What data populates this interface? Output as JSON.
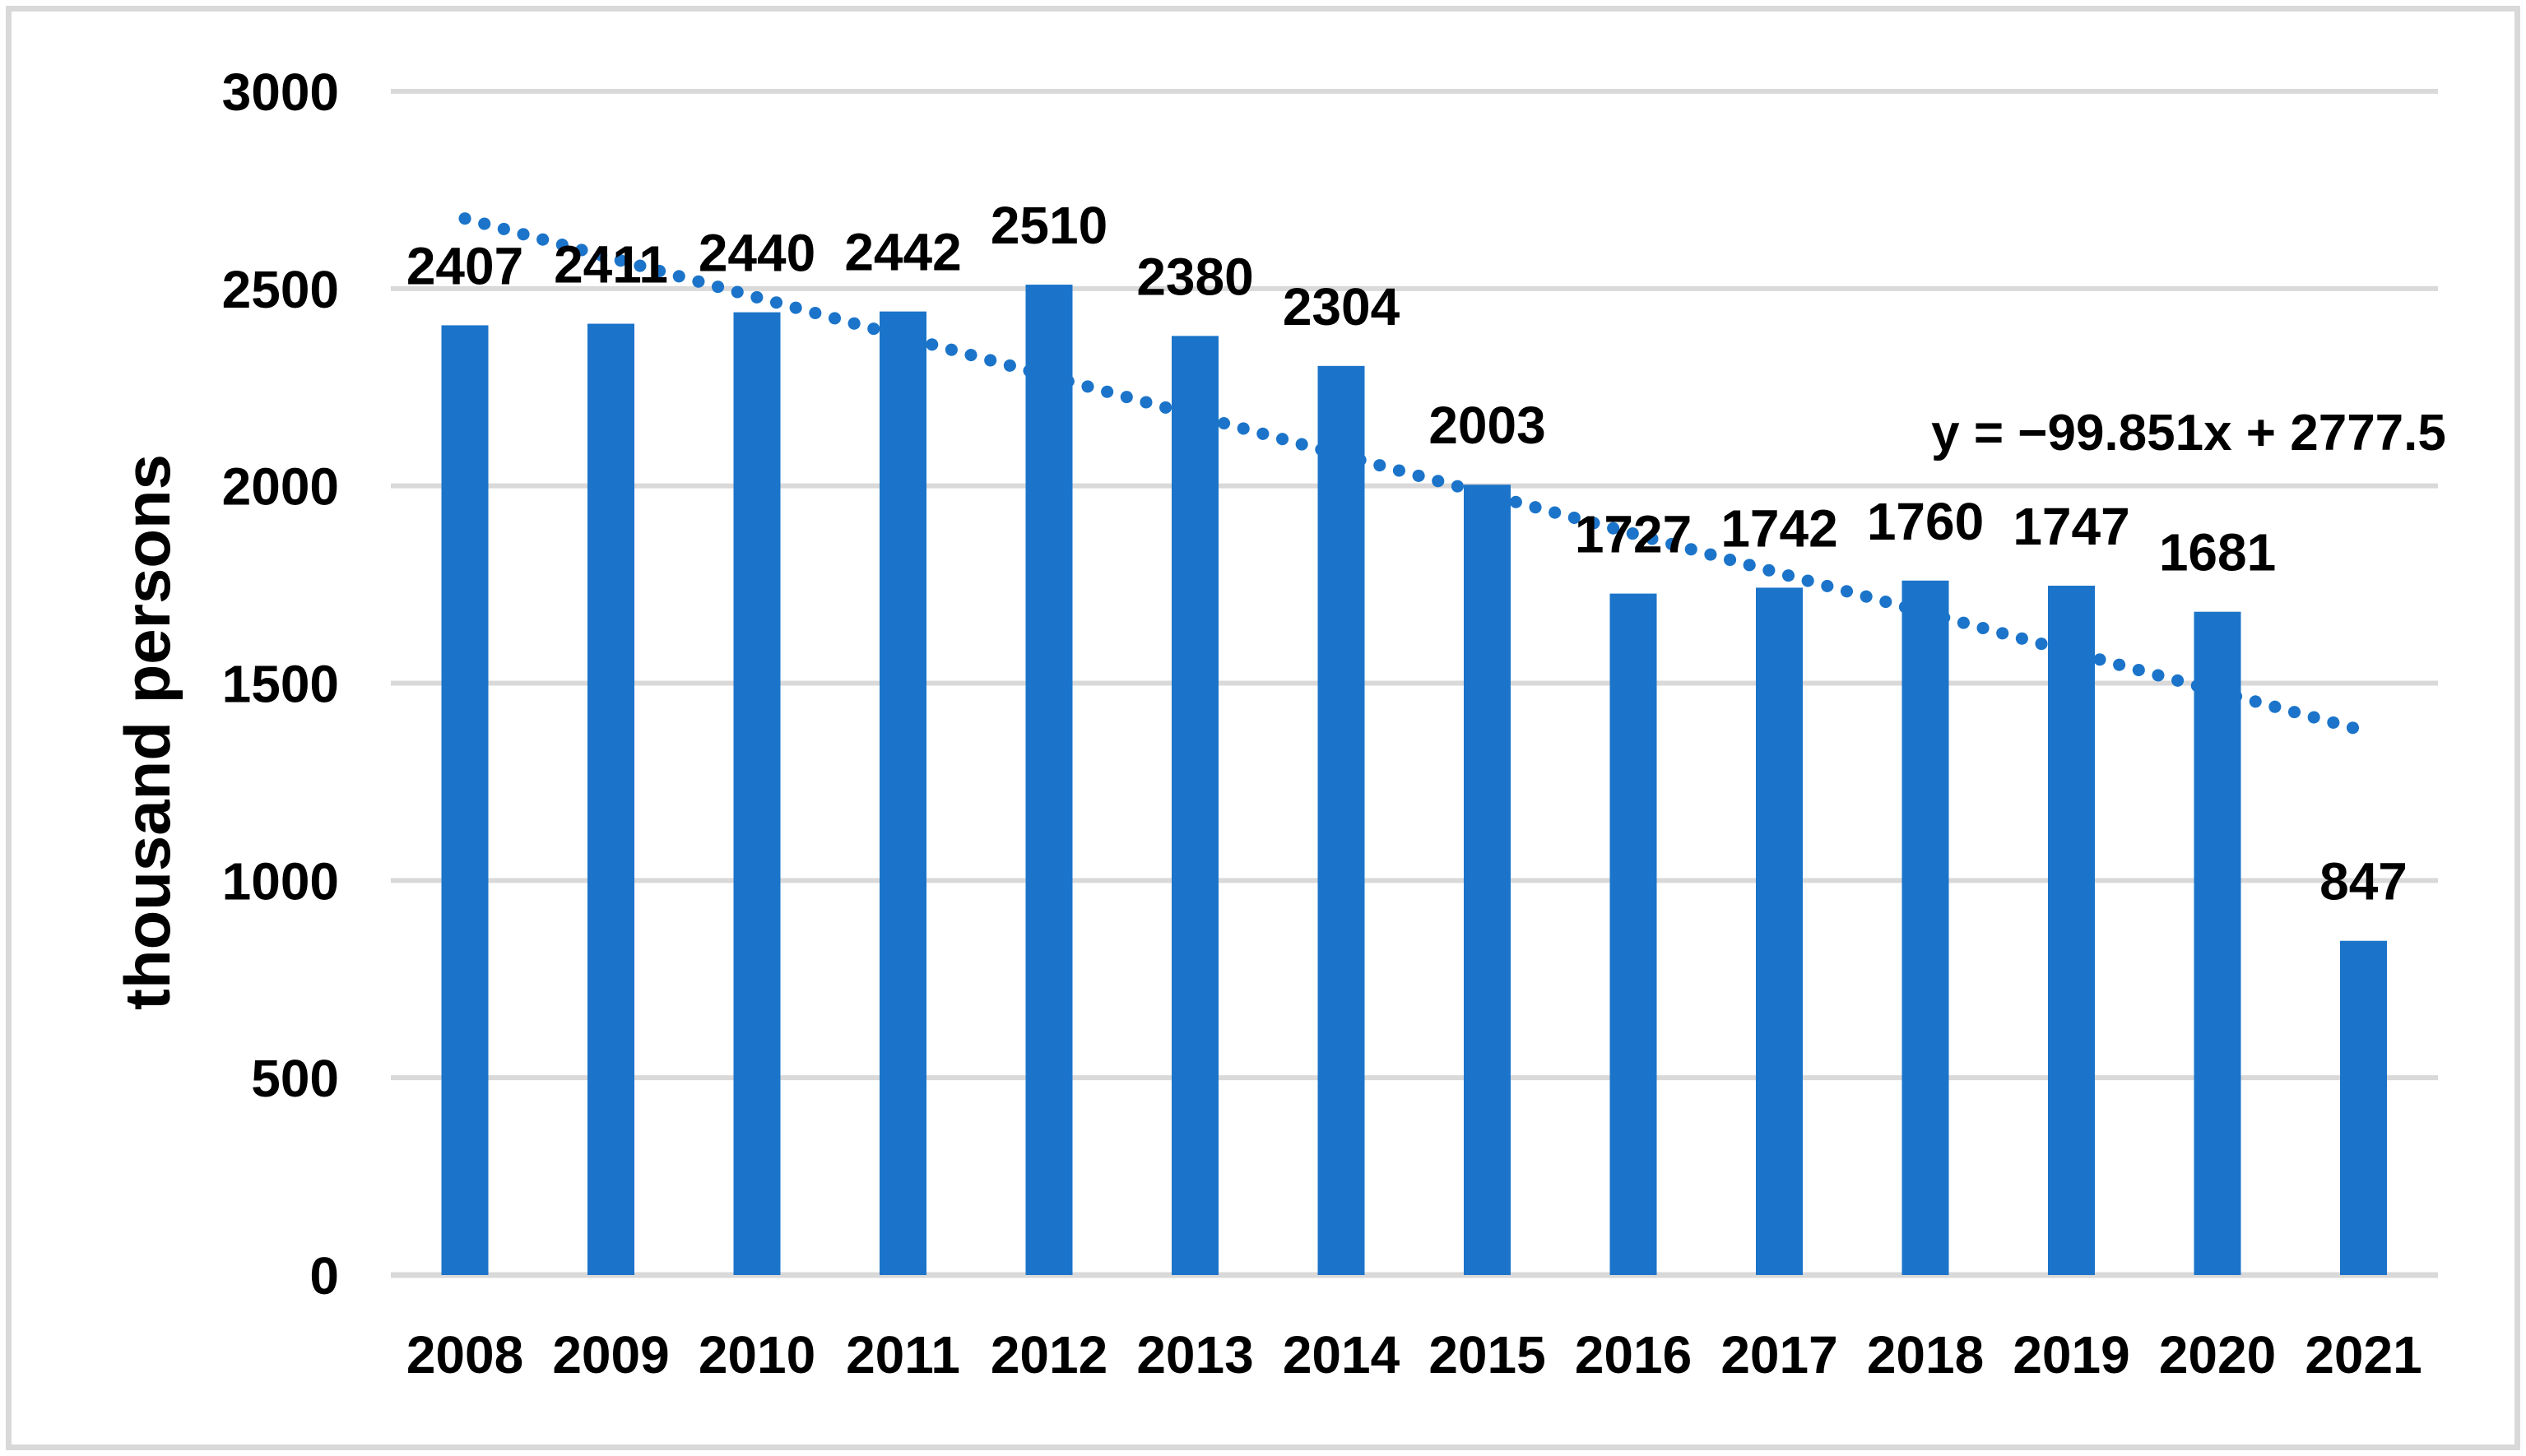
{
  "chart_data": {
    "type": "bar",
    "title": "",
    "xlabel": "",
    "ylabel": "thousand persons",
    "categories": [
      "2008",
      "2009",
      "2010",
      "2011",
      "2012",
      "2013",
      "2014",
      "2015",
      "2016",
      "2017",
      "2018",
      "2019",
      "2020",
      "2021"
    ],
    "values": [
      2407,
      2411,
      2440,
      2442,
      2510,
      2380,
      2304,
      2003,
      1727,
      1742,
      1760,
      1747,
      1681,
      847
    ],
    "ylim": [
      0,
      3000
    ],
    "ytick_step": 500,
    "yticks": [
      0,
      500,
      1000,
      1500,
      2000,
      2500,
      3000
    ],
    "grid": "horizontal",
    "legend": "none",
    "bar_color": "#1B74C9",
    "gridline_color": "#D9D9D9",
    "axis_line_color": "#D9D9D9",
    "frame_color": "#D9D9D9",
    "text_color": "#000000",
    "background_color": "#FFFFFF",
    "data_labels": "outside-end",
    "trendline": {
      "type": "linear",
      "style": "dotted",
      "color": "#1B74C9",
      "slope": -99.851,
      "intercept": 2777.5,
      "x_domain": [
        1,
        14
      ],
      "label": "y = −99.851x + 2777.5"
    }
  }
}
